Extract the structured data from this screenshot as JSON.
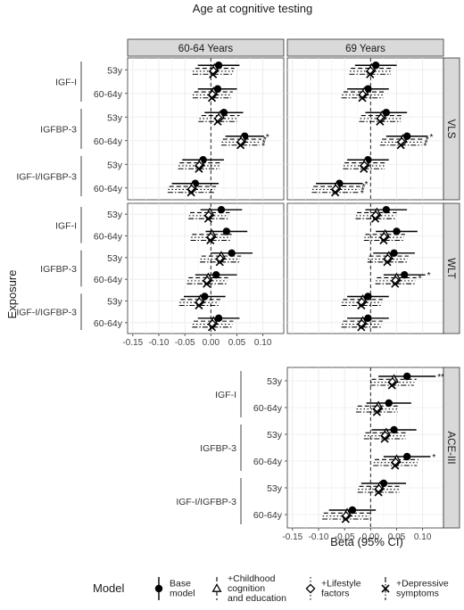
{
  "title": "Age at cognitive testing",
  "column_headers": [
    "60-64 Years",
    "69 Years"
  ],
  "row_headers": [
    "VLS",
    "WLT",
    "ACE-III"
  ],
  "xlabel": "Beta (95% CI)",
  "ylabel": "Exposure",
  "x_ticks": [
    "-0.15",
    "-0.10",
    "-0.05",
    "0.00",
    "0.05",
    "0.10"
  ],
  "x_tick_values": [
    -0.15,
    -0.1,
    -0.05,
    0.0,
    0.05,
    0.1
  ],
  "groups": [
    "IGF-I",
    "IGFBP-3",
    "IGF-I/IGFBP-3"
  ],
  "ages": [
    "53y",
    "60-64y"
  ],
  "legend": {
    "title": "Model",
    "items": [
      {
        "label": "Base\nmodel",
        "symbol": "circle",
        "line": "solid"
      },
      {
        "label": "+Childhood\ncognition\nand education",
        "symbol": "triangle",
        "line": "dashed"
      },
      {
        "label": "+Lifestyle\nfactors",
        "symbol": "diamond",
        "line": "dotted"
      },
      {
        "label": "+Depressive\nsymptoms",
        "symbol": "x",
        "line": "dotdash"
      }
    ]
  },
  "chart_data": {
    "type": "forest",
    "xlim": [
      -0.16,
      0.14
    ],
    "panels": [
      {
        "outcome": "VLS",
        "age": "60-64 Years",
        "rows": [
          {
            "group": "IGF-I",
            "age": "53y",
            "models": [
              [
                0.015,
                -0.025,
                0.055,
                ""
              ],
              [
                0.007,
                -0.03,
                0.045,
                ""
              ],
              [
                0.005,
                -0.035,
                0.045,
                ""
              ],
              [
                0.004,
                -0.035,
                0.043,
                ""
              ]
            ]
          },
          {
            "group": "IGF-I",
            "age": "60-64y",
            "models": [
              [
                0.013,
                -0.025,
                0.05,
                ""
              ],
              [
                0.005,
                -0.032,
                0.042,
                ""
              ],
              [
                0.003,
                -0.035,
                0.04,
                ""
              ],
              [
                0.002,
                -0.035,
                0.039,
                ""
              ]
            ]
          },
          {
            "group": "IGFBP-3",
            "age": "53y",
            "models": [
              [
                0.025,
                -0.012,
                0.062,
                ""
              ],
              [
                0.018,
                -0.018,
                0.055,
                ""
              ],
              [
                0.015,
                -0.022,
                0.052,
                ""
              ],
              [
                0.013,
                -0.024,
                0.05,
                ""
              ]
            ]
          },
          {
            "group": "IGFBP-3",
            "age": "60-64y",
            "models": [
              [
                0.065,
                0.028,
                0.102,
                "*"
              ],
              [
                0.06,
                0.023,
                0.097,
                "*"
              ],
              [
                0.058,
                0.021,
                0.095,
                "*"
              ],
              [
                0.057,
                0.02,
                0.094,
                "*"
              ]
            ]
          },
          {
            "group": "IGF-I/IGFBP-3",
            "age": "53y",
            "models": [
              [
                -0.015,
                -0.055,
                0.025,
                ""
              ],
              [
                -0.02,
                -0.06,
                0.02,
                ""
              ],
              [
                -0.022,
                -0.062,
                0.018,
                ""
              ],
              [
                -0.023,
                -0.063,
                0.017,
                ""
              ]
            ]
          },
          {
            "group": "IGF-I/IGFBP-3",
            "age": "60-64y",
            "models": [
              [
                -0.03,
                -0.075,
                0.015,
                ""
              ],
              [
                -0.035,
                -0.08,
                0.01,
                ""
              ],
              [
                -0.037,
                -0.082,
                0.008,
                ""
              ],
              [
                -0.038,
                -0.083,
                0.007,
                ""
              ]
            ]
          }
        ]
      },
      {
        "outcome": "VLS",
        "age": "69 Years",
        "rows": [
          {
            "group": "IGF-I",
            "age": "53y",
            "models": [
              [
                0.01,
                -0.03,
                0.05,
                ""
              ],
              [
                0.002,
                -0.038,
                0.042,
                ""
              ],
              [
                0.0,
                -0.04,
                0.04,
                ""
              ],
              [
                -0.001,
                -0.041,
                0.039,
                ""
              ]
            ]
          },
          {
            "group": "IGF-I",
            "age": "60-64y",
            "models": [
              [
                -0.005,
                -0.045,
                0.035,
                ""
              ],
              [
                -0.012,
                -0.052,
                0.028,
                ""
              ],
              [
                -0.015,
                -0.055,
                0.025,
                ""
              ],
              [
                -0.016,
                -0.056,
                0.024,
                ""
              ]
            ]
          },
          {
            "group": "IGFBP-3",
            "age": "53y",
            "models": [
              [
                0.03,
                -0.01,
                0.07,
                ""
              ],
              [
                0.022,
                -0.018,
                0.062,
                ""
              ],
              [
                0.02,
                -0.02,
                0.06,
                ""
              ],
              [
                0.018,
                -0.022,
                0.058,
                ""
              ]
            ]
          },
          {
            "group": "IGFBP-3",
            "age": "60-64y",
            "models": [
              [
                0.07,
                0.03,
                0.11,
                "*"
              ],
              [
                0.062,
                0.022,
                0.102,
                "*"
              ],
              [
                0.06,
                0.02,
                0.1,
                "*"
              ],
              [
                0.058,
                0.018,
                0.098,
                "*"
              ]
            ]
          },
          {
            "group": "IGF-I/IGFBP-3",
            "age": "53y",
            "models": [
              [
                -0.005,
                -0.045,
                0.035,
                ""
              ],
              [
                -0.01,
                -0.05,
                0.03,
                ""
              ],
              [
                -0.012,
                -0.052,
                0.028,
                ""
              ],
              [
                -0.013,
                -0.053,
                0.027,
                ""
              ]
            ]
          },
          {
            "group": "IGF-I/IGFBP-3",
            "age": "60-64y",
            "models": [
              [
                -0.06,
                -0.105,
                -0.015,
                "*"
              ],
              [
                -0.065,
                -0.11,
                -0.02,
                "*"
              ],
              [
                -0.067,
                -0.112,
                -0.022,
                "*"
              ],
              [
                -0.068,
                -0.113,
                -0.023,
                "*"
              ]
            ]
          }
        ]
      },
      {
        "outcome": "WLT",
        "age": "60-64 Years",
        "rows": [
          {
            "group": "IGF-I",
            "age": "53y",
            "models": [
              [
                0.02,
                -0.02,
                0.06,
                ""
              ],
              [
                -0.002,
                -0.04,
                0.036,
                ""
              ],
              [
                -0.004,
                -0.042,
                0.034,
                ""
              ],
              [
                -0.005,
                -0.043,
                0.033,
                ""
              ]
            ]
          },
          {
            "group": "IGF-I",
            "age": "60-64y",
            "models": [
              [
                0.03,
                -0.01,
                0.07,
                ""
              ],
              [
                0.002,
                -0.036,
                0.04,
                ""
              ],
              [
                0.0,
                -0.038,
                0.038,
                ""
              ],
              [
                -0.001,
                -0.039,
                0.037,
                ""
              ]
            ]
          },
          {
            "group": "IGFBP-3",
            "age": "53y",
            "models": [
              [
                0.04,
                0.0,
                0.08,
                ""
              ],
              [
                0.02,
                -0.018,
                0.058,
                ""
              ],
              [
                0.018,
                -0.02,
                0.056,
                ""
              ],
              [
                0.017,
                -0.021,
                0.055,
                ""
              ]
            ]
          },
          {
            "group": "IGFBP-3",
            "age": "60-64y",
            "models": [
              [
                0.01,
                -0.03,
                0.05,
                ""
              ],
              [
                -0.005,
                -0.043,
                0.033,
                ""
              ],
              [
                -0.007,
                -0.045,
                0.031,
                ""
              ],
              [
                -0.008,
                -0.046,
                0.03,
                ""
              ]
            ]
          },
          {
            "group": "IGF-I/IGFBP-3",
            "age": "53y",
            "models": [
              [
                -0.012,
                -0.052,
                0.028,
                ""
              ],
              [
                -0.02,
                -0.058,
                0.018,
                ""
              ],
              [
                -0.022,
                -0.06,
                0.016,
                ""
              ],
              [
                -0.023,
                -0.061,
                0.015,
                ""
              ]
            ]
          },
          {
            "group": "IGF-I/IGFBP-3",
            "age": "60-64y",
            "models": [
              [
                0.015,
                -0.025,
                0.055,
                ""
              ],
              [
                0.005,
                -0.033,
                0.043,
                ""
              ],
              [
                0.003,
                -0.035,
                0.041,
                ""
              ],
              [
                0.002,
                -0.036,
                0.04,
                ""
              ]
            ]
          }
        ]
      },
      {
        "outcome": "WLT",
        "age": "69 Years",
        "rows": [
          {
            "group": "IGF-I",
            "age": "53y",
            "models": [
              [
                0.03,
                -0.01,
                0.07,
                ""
              ],
              [
                0.012,
                -0.026,
                0.05,
                ""
              ],
              [
                0.01,
                -0.028,
                0.048,
                ""
              ],
              [
                0.009,
                -0.029,
                0.047,
                ""
              ]
            ]
          },
          {
            "group": "IGF-I",
            "age": "60-64y",
            "models": [
              [
                0.05,
                0.01,
                0.09,
                ""
              ],
              [
                0.028,
                -0.01,
                0.066,
                ""
              ],
              [
                0.026,
                -0.012,
                0.064,
                ""
              ],
              [
                0.025,
                -0.013,
                0.063,
                ""
              ]
            ]
          },
          {
            "group": "IGFBP-3",
            "age": "53y",
            "models": [
              [
                0.045,
                0.005,
                0.085,
                ""
              ],
              [
                0.035,
                -0.003,
                0.073,
                ""
              ],
              [
                0.033,
                -0.005,
                0.071,
                ""
              ],
              [
                0.032,
                -0.006,
                0.07,
                ""
              ]
            ]
          },
          {
            "group": "IGFBP-3",
            "age": "60-64y",
            "models": [
              [
                0.065,
                0.025,
                0.105,
                "*"
              ],
              [
                0.05,
                0.012,
                0.088,
                "*"
              ],
              [
                0.048,
                0.01,
                0.086,
                ""
              ],
              [
                0.047,
                0.009,
                0.085,
                ""
              ]
            ]
          },
          {
            "group": "IGF-I/IGFBP-3",
            "age": "53y",
            "models": [
              [
                -0.005,
                -0.045,
                0.035,
                ""
              ],
              [
                -0.015,
                -0.053,
                0.023,
                ""
              ],
              [
                -0.017,
                -0.055,
                0.021,
                ""
              ],
              [
                -0.018,
                -0.056,
                0.02,
                ""
              ]
            ]
          },
          {
            "group": "IGF-I/IGFBP-3",
            "age": "60-64y",
            "models": [
              [
                -0.005,
                -0.045,
                0.035,
                ""
              ],
              [
                -0.015,
                -0.053,
                0.023,
                ""
              ],
              [
                -0.017,
                -0.055,
                0.021,
                ""
              ],
              [
                -0.018,
                -0.056,
                0.02,
                ""
              ]
            ]
          }
        ]
      },
      {
        "outcome": "ACE-III",
        "age": "69 Years",
        "rows": [
          {
            "group": "IGF-I",
            "age": "53y",
            "models": [
              [
                0.07,
                0.015,
                0.125,
                "**"
              ],
              [
                0.045,
                0.002,
                0.088,
                ""
              ],
              [
                0.042,
                0.0,
                0.084,
                ""
              ],
              [
                0.041,
                -0.001,
                0.083,
                ""
              ]
            ]
          },
          {
            "group": "IGF-I",
            "age": "60-64y",
            "models": [
              [
                0.035,
                -0.008,
                0.078,
                ""
              ],
              [
                0.015,
                -0.025,
                0.055,
                ""
              ],
              [
                0.013,
                -0.027,
                0.053,
                ""
              ],
              [
                0.012,
                -0.028,
                0.052,
                ""
              ]
            ]
          },
          {
            "group": "IGFBP-3",
            "age": "53y",
            "models": [
              [
                0.045,
                0.002,
                0.088,
                ""
              ],
              [
                0.03,
                -0.01,
                0.07,
                ""
              ],
              [
                0.028,
                -0.012,
                0.068,
                ""
              ],
              [
                0.027,
                -0.013,
                0.067,
                ""
              ]
            ]
          },
          {
            "group": "IGFBP-3",
            "age": "60-64y",
            "models": [
              [
                0.07,
                0.025,
                0.115,
                "*"
              ],
              [
                0.05,
                0.008,
                0.092,
                ""
              ],
              [
                0.048,
                0.006,
                0.09,
                ""
              ],
              [
                0.047,
                0.005,
                0.089,
                ""
              ]
            ]
          },
          {
            "group": "IGF-I/IGFBP-3",
            "age": "53y",
            "models": [
              [
                0.025,
                -0.018,
                0.068,
                ""
              ],
              [
                0.018,
                -0.022,
                0.058,
                ""
              ],
              [
                0.016,
                -0.024,
                0.056,
                ""
              ],
              [
                0.015,
                -0.025,
                0.055,
                ""
              ]
            ]
          },
          {
            "group": "IGF-I/IGFBP-3",
            "age": "60-64y",
            "models": [
              [
                -0.035,
                -0.08,
                0.01,
                ""
              ],
              [
                -0.045,
                -0.09,
                0.0,
                ""
              ],
              [
                -0.047,
                -0.092,
                -0.002,
                ""
              ],
              [
                -0.048,
                -0.093,
                -0.003,
                ""
              ]
            ]
          }
        ]
      }
    ]
  }
}
